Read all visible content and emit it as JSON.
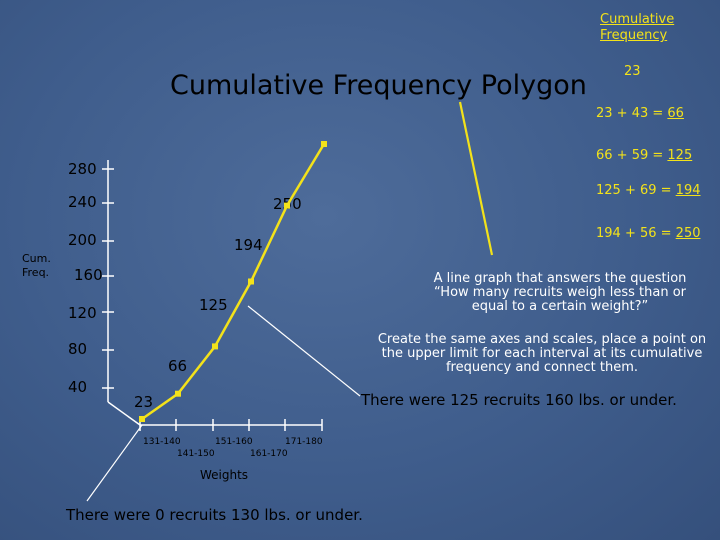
{
  "header": {
    "cum_freq": "Cumulative Frequency"
  },
  "chart_data": {
    "type": "line",
    "title": "Cumulative Frequency Polygon",
    "xlabel": "Weights",
    "ylabel": "Cum. Freq.",
    "x_tick_labels": [
      "131-140",
      "141-150",
      "151-160",
      "161-170",
      "171-180"
    ],
    "y_tick_labels": [
      "40",
      "80",
      "120",
      "160",
      "200",
      "240",
      "280"
    ],
    "series": [
      {
        "values": [
          0,
          23,
          66,
          125,
          194,
          250
        ]
      }
    ],
    "point_labels": [
      "23",
      "66",
      "125",
      "194",
      "250"
    ],
    "color": "#f3e21a"
  },
  "calculations": {
    "first": "23",
    "rows": [
      {
        "expr": "23 + 43 = ",
        "result": "66"
      },
      {
        "expr": "66 + 59 = ",
        "result": "125"
      },
      {
        "expr": "125 + 69 = ",
        "result": "194"
      },
      {
        "expr": "194 + 56 = ",
        "result": "250"
      }
    ]
  },
  "notes": {
    "definition": "A line graph that answers the question “How many recruits weigh less than or equal to a certain weight?”",
    "instruction": "Create the same axes and scales, place a point on the upper limit for each interval at its cumulative frequency and connect them.",
    "callout_125": "There were 125 recruits 160 lbs. or under.",
    "callout_0": "There were 0 recruits 130 lbs. or under."
  }
}
